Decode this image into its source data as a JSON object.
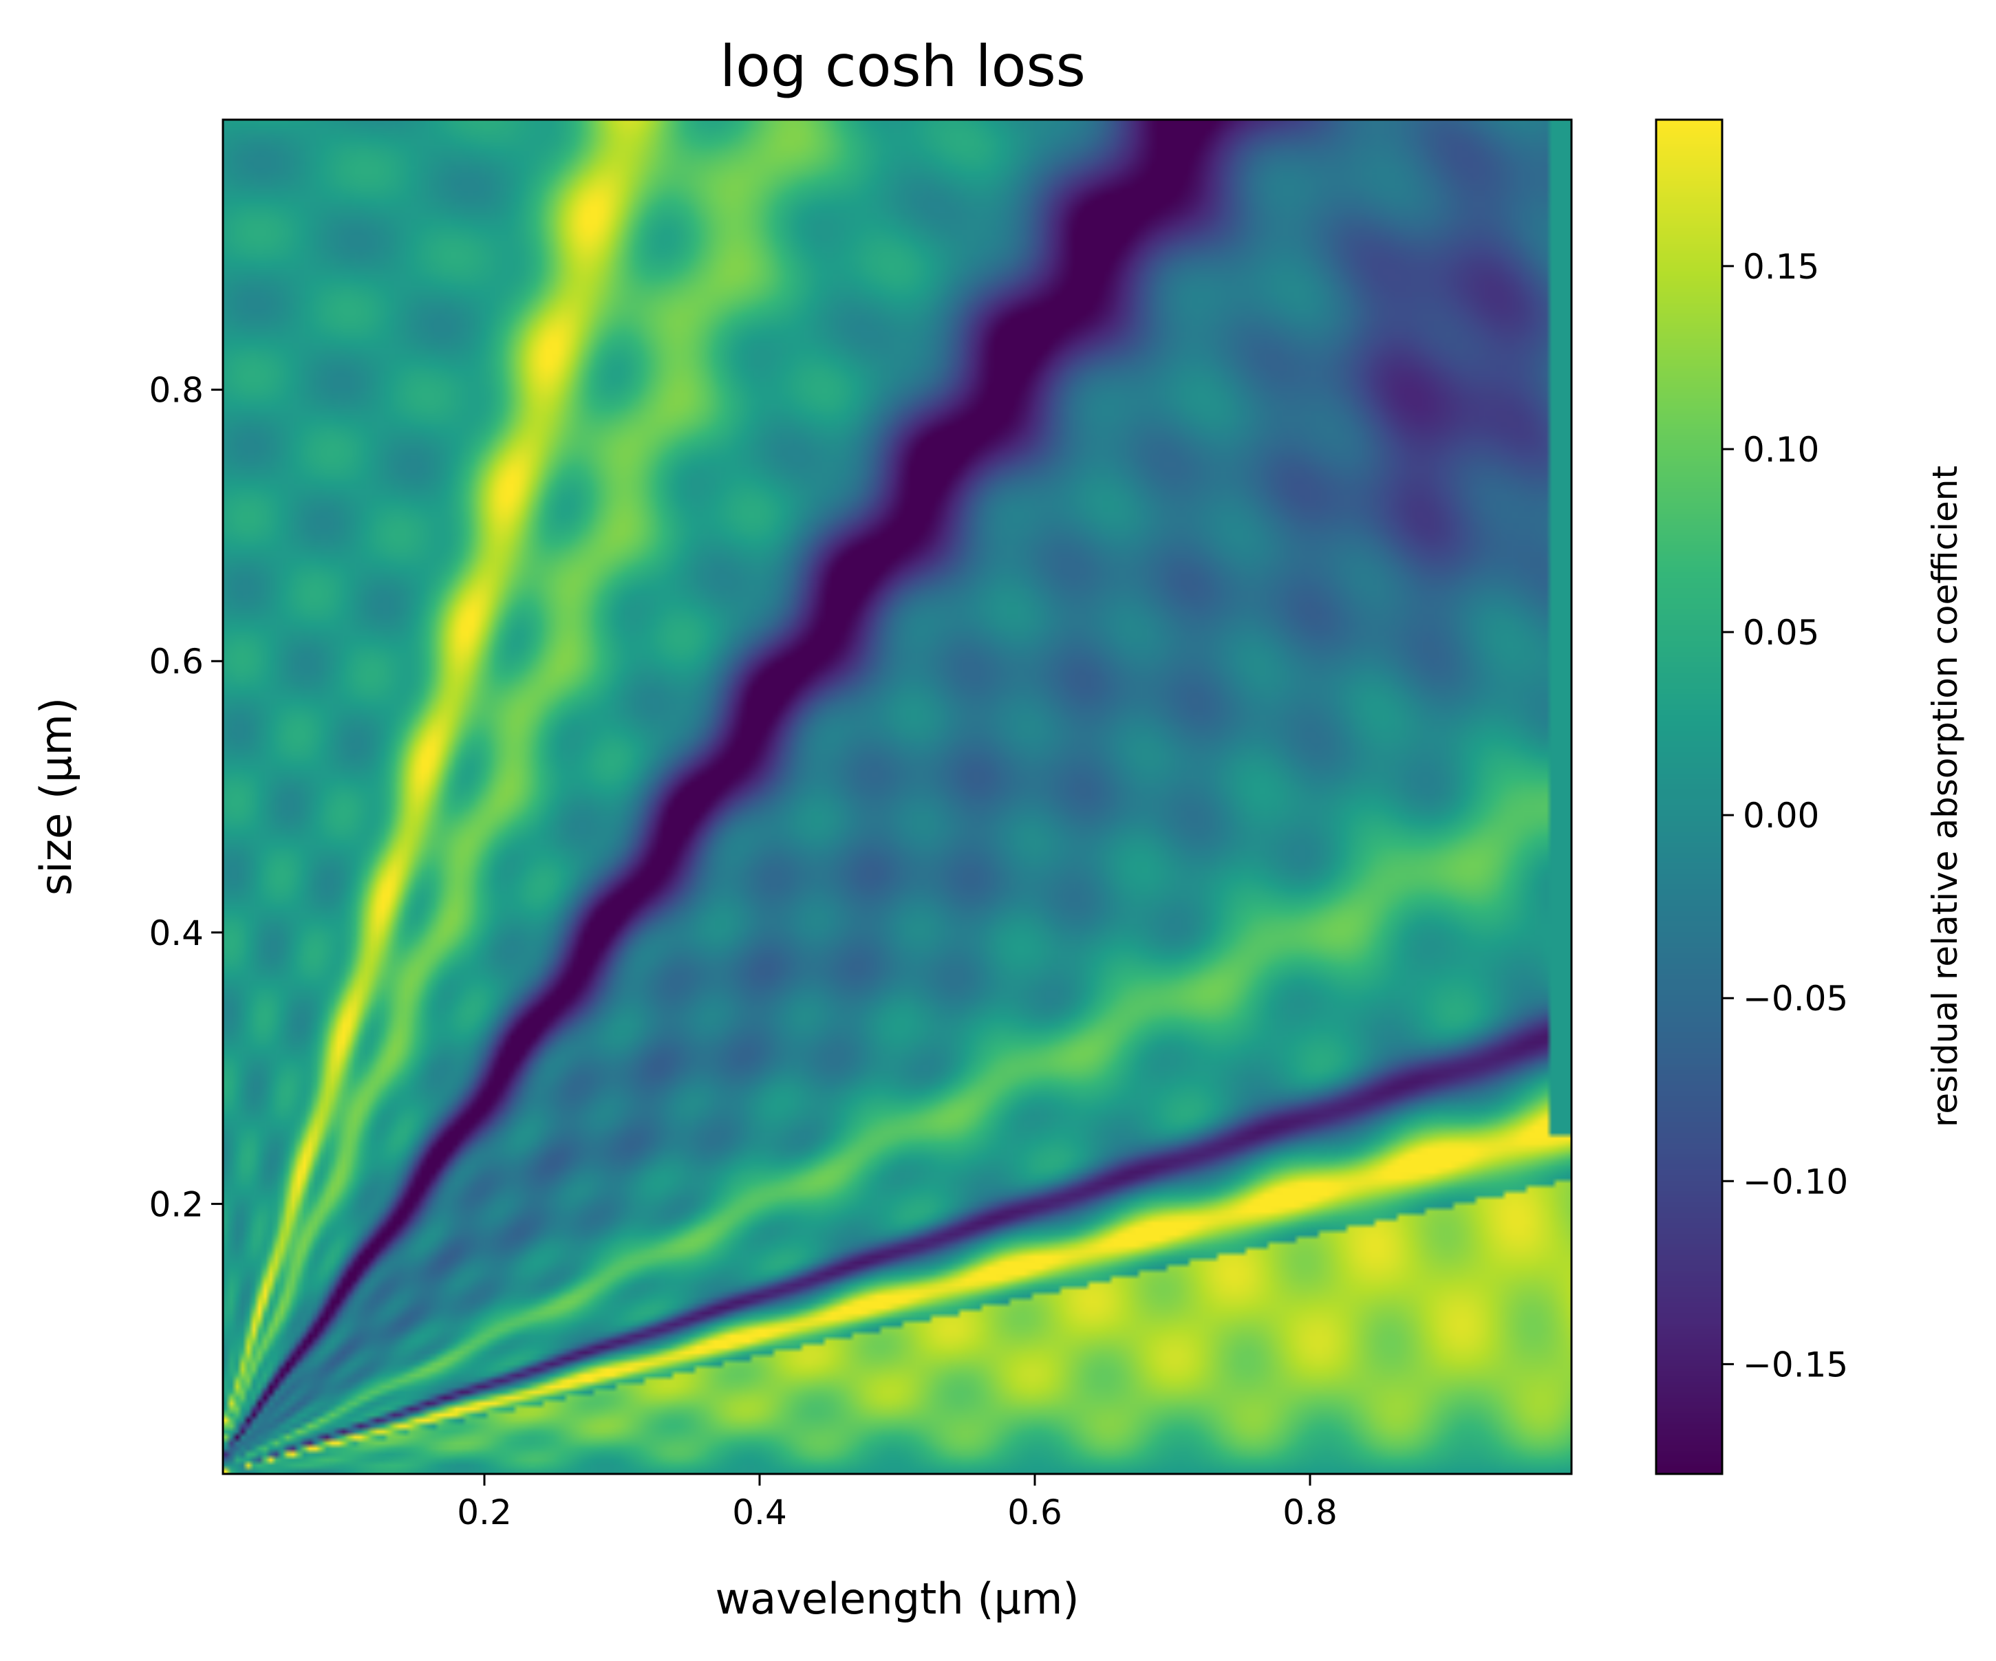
{
  "chart_data": {
    "type": "heatmap",
    "title": "log cosh loss",
    "xlabel": "wavelength (μm)",
    "ylabel": "size (μm)",
    "xlim": [
      0.01,
      0.99
    ],
    "ylim": [
      0.001,
      0.999
    ],
    "x_ticks": [
      0.2,
      0.4,
      0.6,
      0.8
    ],
    "x_tick_labels": [
      "0.2",
      "0.4",
      "0.6",
      "0.8"
    ],
    "y_ticks": [
      0.2,
      0.4,
      0.6,
      0.8
    ],
    "y_tick_labels": [
      "0.2",
      "0.4",
      "0.6",
      "0.8"
    ],
    "colormap": "viridis",
    "grid": false,
    "colorbar": {
      "label": "residual relative absorption coefficient",
      "range": [
        -0.18,
        0.19
      ],
      "ticks": [
        -0.15,
        -0.1,
        -0.05,
        0.0,
        0.05,
        0.1,
        0.15
      ],
      "tick_labels": [
        "−0.15",
        "−0.10",
        "−0.05",
        "0.00",
        "0.05",
        "0.10",
        "0.15"
      ]
    },
    "features": [
      {
        "kind": "dark ridge",
        "slope_size_over_wavelength": 1.4,
        "value": -0.17
      },
      {
        "kind": "bright ridge",
        "slope_size_over_wavelength": 3.3,
        "value": 0.15
      },
      {
        "kind": "bright ridge",
        "slope_size_over_wavelength": 2.4,
        "value": 0.1
      },
      {
        "kind": "bright ridge",
        "slope_size_over_wavelength": 0.5,
        "value": 0.12
      },
      {
        "kind": "dark ridge",
        "slope_size_over_wavelength": 0.33,
        "value": -0.16
      },
      {
        "kind": "bright ridge",
        "slope_size_over_wavelength": 0.26,
        "value": 0.17
      },
      {
        "kind": "bright region",
        "below_slope": 0.22,
        "value": 0.14
      }
    ]
  }
}
